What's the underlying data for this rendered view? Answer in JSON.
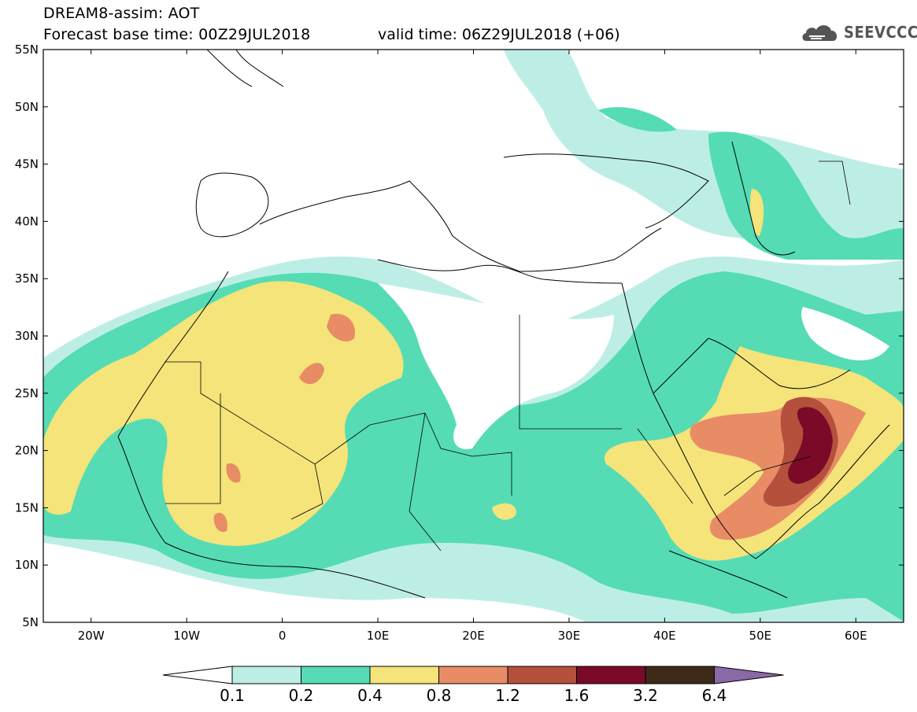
{
  "header": {
    "title": "DREAM8-assim: AOT",
    "base_time": "Forecast base time: 00Z29JUL2018",
    "valid_time": "valid time: 06Z29JUL2018 (+06)",
    "logo_text": "SEEVCCC"
  },
  "map": {
    "projection": "lat-lon",
    "lon_range": [
      -25,
      65
    ],
    "lat_range": [
      5,
      55
    ],
    "lat_labels": [
      "55N",
      "50N",
      "45N",
      "40N",
      "35N",
      "30N",
      "25N",
      "20N",
      "15N",
      "10N",
      "5N"
    ],
    "lon_labels": [
      "20W",
      "10W",
      "0",
      "10E",
      "20E",
      "30E",
      "40E",
      "50E",
      "60E"
    ]
  },
  "legend": {
    "labels": [
      "0.1",
      "0.2",
      "0.4",
      "0.8",
      "1.2",
      "1.6",
      "3.2",
      "6.4"
    ],
    "colors": [
      "#ffffff",
      "#bdeee6",
      "#55dcb4",
      "#f4e47a",
      "#e88c66",
      "#b4503c",
      "#7a0a28",
      "#3e2a18",
      "#8a6aa6"
    ]
  }
}
